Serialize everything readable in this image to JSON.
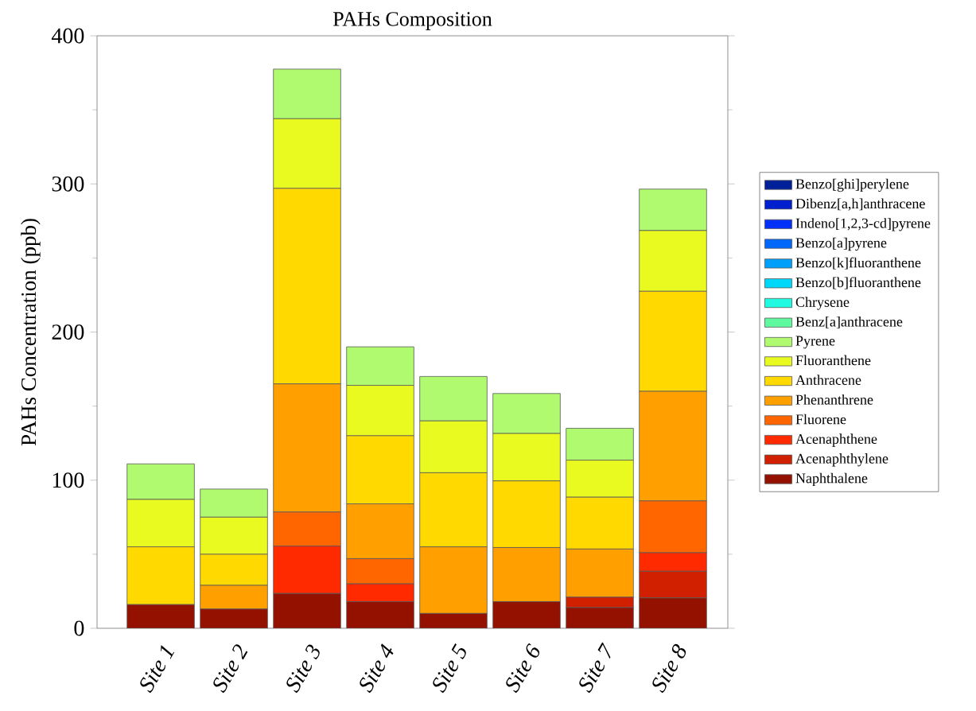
{
  "chart_data": {
    "type": "bar",
    "title": "PAHs Composition",
    "ylabel": "PAHs Concentration (ppb)",
    "stacked": true,
    "legend": "right",
    "ylim": [
      0,
      400
    ],
    "yticks": [
      0,
      100,
      200,
      300,
      400
    ],
    "categories": [
      "Site 1",
      "Site 2",
      "Site 3",
      "Site 4",
      "Site 5",
      "Site 6",
      "Site 7",
      "Site 8"
    ],
    "series": [
      {
        "name": "Naphthalene",
        "color": "#941100",
        "values": [
          16,
          13,
          23.5,
          18,
          10,
          18,
          14,
          20.5
        ]
      },
      {
        "name": "Acenaphthylene",
        "color": "#d12000",
        "values": [
          0,
          0,
          0,
          0,
          0,
          0,
          7,
          18
        ]
      },
      {
        "name": "Acenaphthene",
        "color": "#ff2a00",
        "values": [
          0,
          0,
          32,
          12,
          0,
          0,
          0,
          12.5
        ]
      },
      {
        "name": "Fluorene",
        "color": "#ff6600",
        "values": [
          0,
          0,
          23,
          17,
          0,
          0,
          0,
          35
        ]
      },
      {
        "name": "Phenanthrene",
        "color": "#ffa000",
        "values": [
          0,
          16,
          86.5,
          37,
          45,
          36.5,
          32.5,
          74
        ]
      },
      {
        "name": "Anthracene",
        "color": "#ffd900",
        "values": [
          39,
          21,
          132,
          46,
          50,
          45,
          35,
          67.5
        ]
      },
      {
        "name": "Fluoranthene",
        "color": "#e8fa1f",
        "values": [
          32,
          25,
          47,
          34,
          35,
          32,
          25,
          41
        ]
      },
      {
        "name": "Pyrene",
        "color": "#b0fa70",
        "values": [
          24,
          19,
          33.5,
          26,
          30,
          27,
          21.5,
          28
        ]
      },
      {
        "name": "Benz[a]anthracene",
        "color": "#5ffaa0",
        "values": [
          0,
          0,
          0,
          0,
          0,
          0,
          0,
          0
        ]
      },
      {
        "name": "Chrysene",
        "color": "#1ffae0",
        "values": [
          0,
          0,
          0,
          0,
          0,
          0,
          0,
          0
        ]
      },
      {
        "name": "Benzo[b]fluoranthene",
        "color": "#00d8fa",
        "values": [
          0,
          0,
          0,
          0,
          0,
          0,
          0,
          0
        ]
      },
      {
        "name": "Benzo[k]fluoranthene",
        "color": "#00a0fa",
        "values": [
          0,
          0,
          0,
          0,
          0,
          0,
          0,
          0
        ]
      },
      {
        "name": "Benzo[a]pyrene",
        "color": "#0068fa",
        "values": [
          0,
          0,
          0,
          0,
          0,
          0,
          0,
          0
        ]
      },
      {
        "name": "Indeno[1,2,3-cd]pyrene",
        "color": "#0030fa",
        "values": [
          0,
          0,
          0,
          0,
          0,
          0,
          0,
          0
        ]
      },
      {
        "name": "Dibenz[a,h]anthracene",
        "color": "#0020d0",
        "values": [
          0,
          0,
          0,
          0,
          0,
          0,
          0,
          0
        ]
      },
      {
        "name": "Benzo[ghi]perylene",
        "color": "#00209a",
        "values": [
          0,
          0,
          0,
          0,
          0,
          0,
          0,
          0
        ]
      }
    ]
  }
}
